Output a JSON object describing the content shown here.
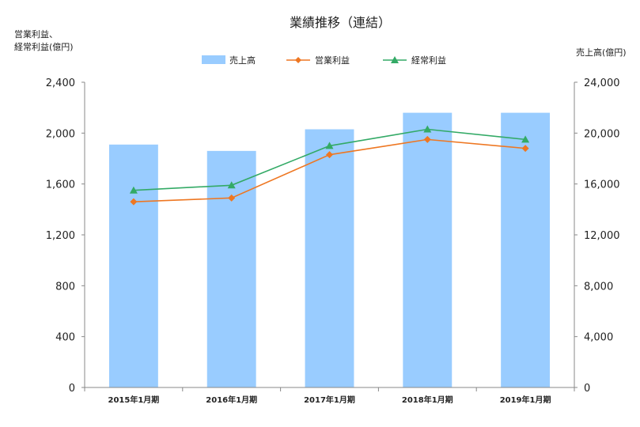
{
  "chart_data": {
    "type": "bar",
    "title": "業績推移（連結）",
    "categories": [
      "2015年1月期",
      "2016年1月期",
      "2017年1月期",
      "2018年1月期",
      "2019年1月期"
    ],
    "left_axis": {
      "label_line1": "営業利益、",
      "label_line2": "経常利益(億円)",
      "ylim": [
        0,
        2400
      ],
      "ticks": [
        "0",
        "400",
        "800",
        "1,200",
        "1,600",
        "2,000",
        "2,400"
      ],
      "tick_values": [
        0,
        400,
        800,
        1200,
        1600,
        2000,
        2400
      ]
    },
    "right_axis": {
      "label": "売上高(億円)",
      "ylim": [
        0,
        24000
      ],
      "ticks": [
        "0",
        "4,000",
        "8,000",
        "12,000",
        "16,000",
        "20,000",
        "24,000"
      ],
      "tick_values": [
        0,
        4000,
        8000,
        12000,
        16000,
        20000,
        24000
      ]
    },
    "series": [
      {
        "name": "売上高",
        "type": "bar",
        "axis": "right",
        "color": "#99ccff",
        "values": [
          19100,
          18600,
          20300,
          21600,
          21600
        ]
      },
      {
        "name": "営業利益",
        "type": "line",
        "axis": "left",
        "marker": "diamond",
        "color": "#ee7722",
        "values": [
          1460,
          1490,
          1830,
          1950,
          1880
        ]
      },
      {
        "name": "経常利益",
        "type": "line",
        "axis": "left",
        "marker": "triangle",
        "color": "#33aa66",
        "values": [
          1550,
          1590,
          1900,
          2030,
          1950
        ]
      }
    ],
    "legend_position": "top",
    "grid": false
  }
}
